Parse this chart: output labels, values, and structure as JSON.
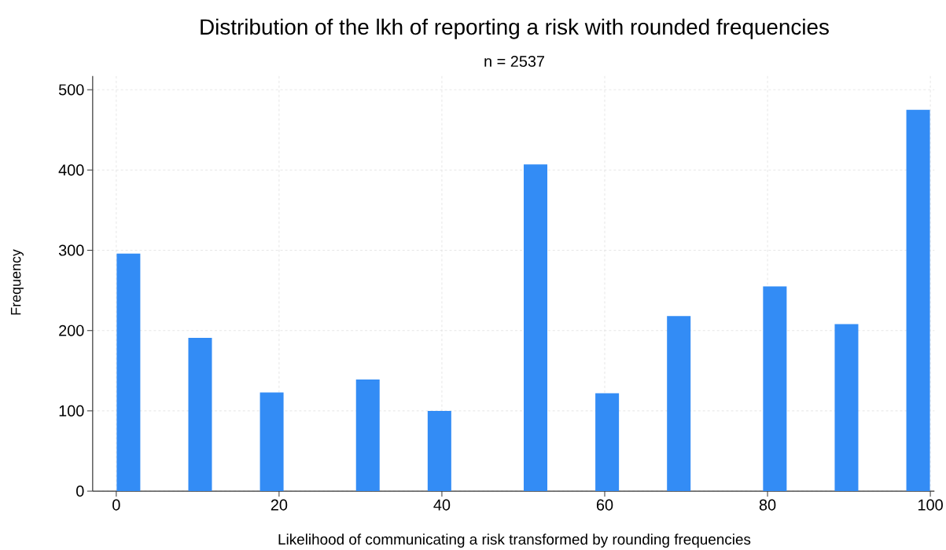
{
  "chart_data": {
    "type": "bar",
    "title": "Distribution of the lkh of reporting a risk with rounded frequencies",
    "subtitle": "n = 2537",
    "xlabel": "Likelihood of communicating a risk transformed by rounding frequencies",
    "ylabel": "Frequency",
    "x": [
      1.5,
      10.3,
      19.1,
      30.9,
      39.7,
      51.5,
      60.3,
      69.1,
      80.9,
      89.7,
      98.5
    ],
    "values": [
      296,
      191,
      123,
      139,
      100,
      407,
      122,
      218,
      255,
      208,
      475
    ],
    "color": "#338cf5",
    "xlim": [
      -2.9,
      100.5
    ],
    "ylim": [
      0,
      517
    ],
    "xticks": [
      0,
      20,
      40,
      60,
      80,
      100
    ],
    "yticks": [
      0,
      100,
      200,
      300,
      400,
      500
    ],
    "grid": true
  }
}
